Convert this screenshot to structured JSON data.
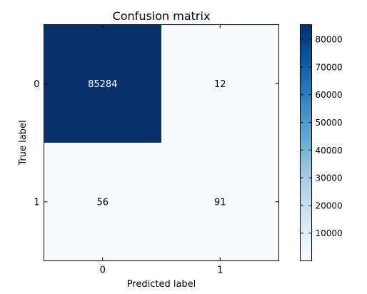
{
  "chart_data": {
    "type": "heatmap",
    "title": "Confusion matrix",
    "xlabel": "Predicted label",
    "ylabel": "True label",
    "x_categories": [
      "0",
      "1"
    ],
    "y_categories": [
      "0",
      "1"
    ],
    "matrix": [
      [
        85284,
        12
      ],
      [
        56,
        91
      ]
    ],
    "cell_text_dark": "#000000",
    "cell_text_light": "#ffffff",
    "colormap": "Blues",
    "color_low": "#f7fbff",
    "color_high": "#08306b",
    "colorbar": {
      "range": [
        12,
        85284
      ],
      "ticks": [
        10000,
        20000,
        30000,
        40000,
        50000,
        60000,
        70000,
        80000
      ],
      "tick_labels": [
        "10000",
        "20000",
        "30000",
        "40000",
        "50000",
        "60000",
        "70000",
        "80000"
      ]
    }
  }
}
